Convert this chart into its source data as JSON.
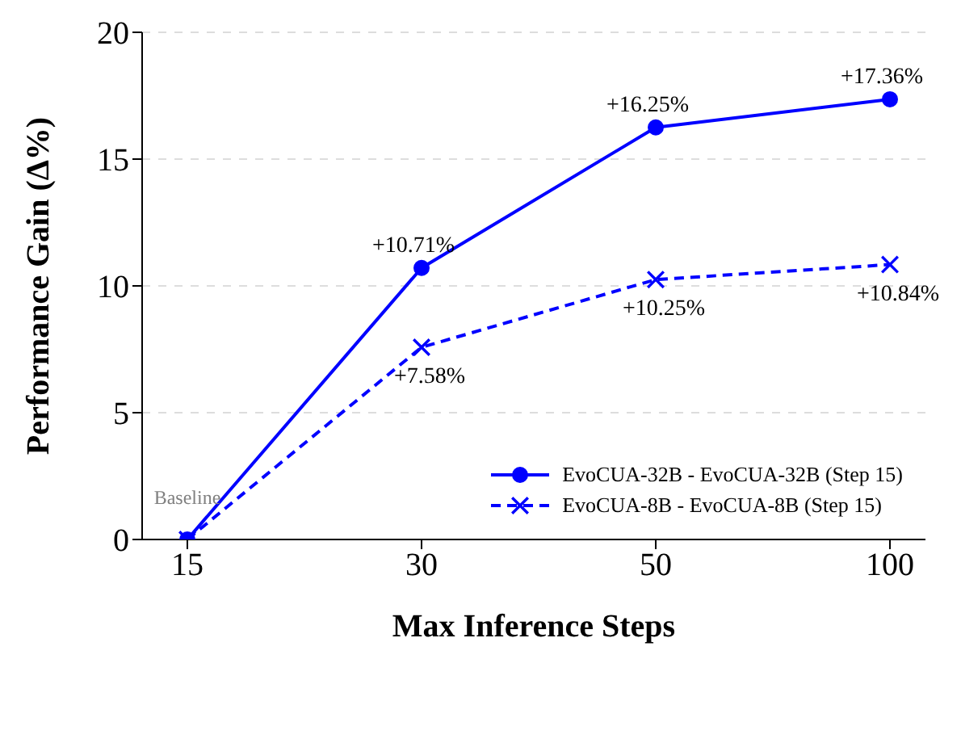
{
  "chart_data": {
    "type": "line",
    "xlabel": "Max Inference Steps",
    "ylabel": "Performance Gain (Δ%)",
    "categories": [
      "15",
      "30",
      "50",
      "100"
    ],
    "ylim": [
      0,
      20
    ],
    "yticks": [
      0,
      5,
      10,
      15,
      20
    ],
    "grid": "y",
    "legend": "bottom right",
    "annotations": [
      {
        "text": "Baseline",
        "x": "15",
        "y": 0
      }
    ],
    "series": [
      {
        "name": "EvoCUA-32B - EvoCUA-32B (Step 15)",
        "color": "#0000ff",
        "values": [
          0,
          10.71,
          16.25,
          17.36
        ],
        "marker": "circle",
        "line_style": "solid",
        "value_labels": [
          null,
          "+10.71%",
          "+16.25%",
          "+17.36%"
        ]
      },
      {
        "name": "EvoCUA-8B - EvoCUA-8B (Step 15)",
        "color": "#0000ff",
        "values": [
          0,
          7.58,
          10.25,
          10.84
        ],
        "marker": "cross",
        "line_style": "dashed",
        "value_labels": [
          null,
          "+7.58%",
          "+10.25%",
          "+10.84%"
        ]
      }
    ]
  }
}
